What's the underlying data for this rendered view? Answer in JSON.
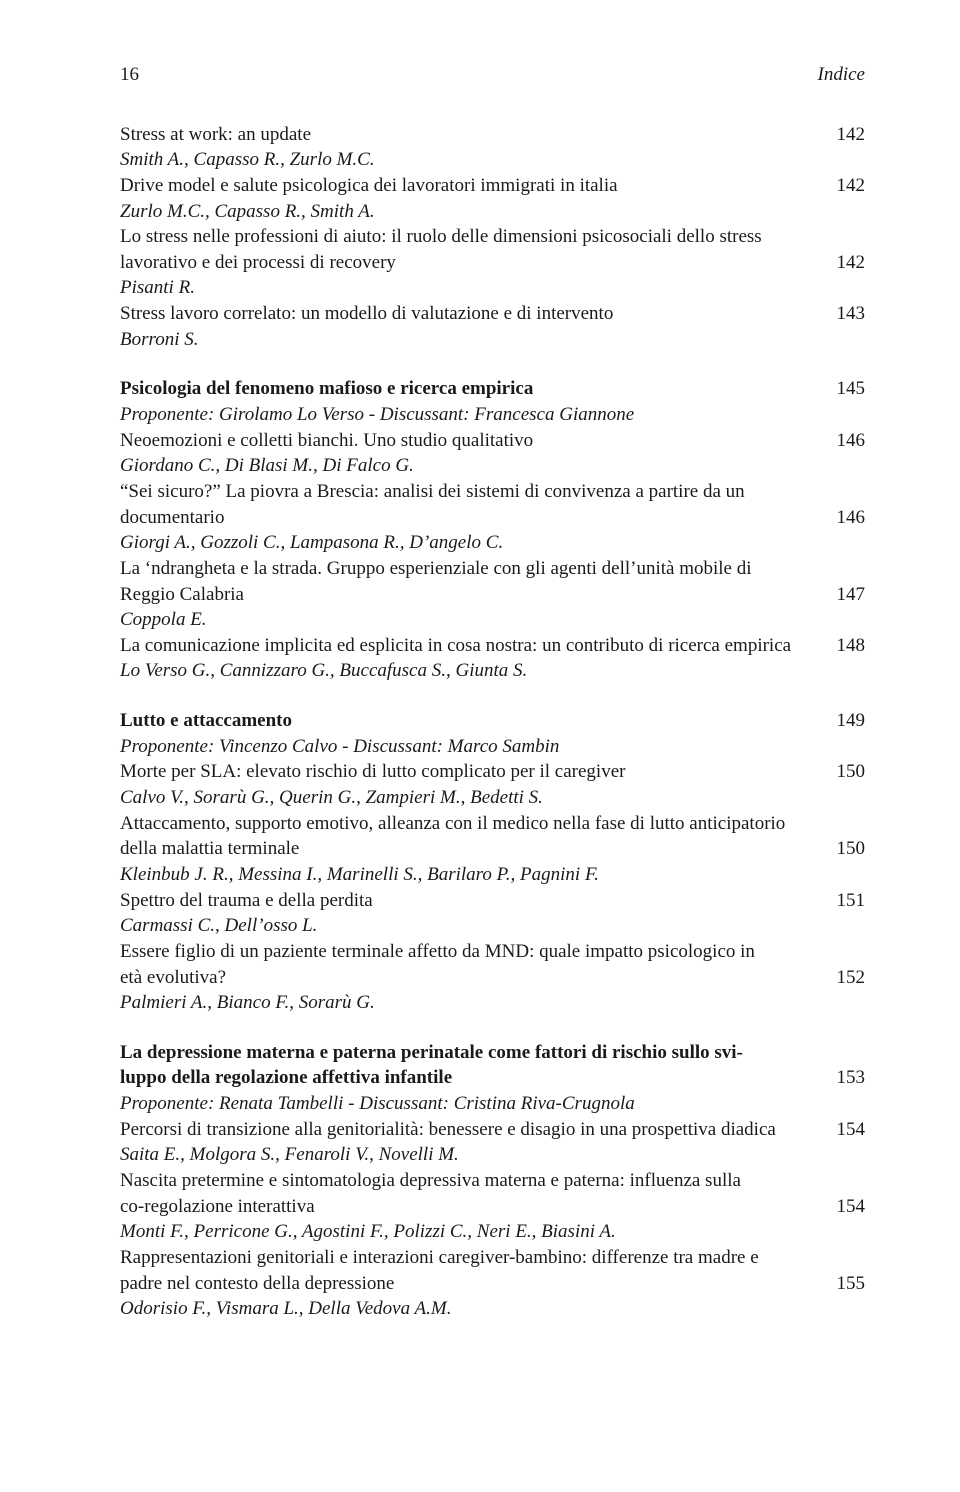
{
  "header": {
    "page_num": "16",
    "running_title": "Indice"
  },
  "entries": [
    {
      "type": "entry",
      "title": "Stress at work: an update",
      "page": "142"
    },
    {
      "type": "authors",
      "text": "Smith A., Capasso R., Zurlo M.C."
    },
    {
      "type": "entry",
      "title": "Drive model e salute psicologica dei lavoratori immigrati in italia",
      "page": "142"
    },
    {
      "type": "authors",
      "text": "Zurlo M.C., Capasso R., Smith A."
    },
    {
      "type": "plain",
      "text": "Lo stress nelle professioni di aiuto: il ruolo delle dimensioni psicosociali dello stress"
    },
    {
      "type": "entry",
      "title": "lavorativo e dei processi di recovery",
      "page": "142"
    },
    {
      "type": "authors",
      "text": "Pisanti R."
    },
    {
      "type": "entry",
      "title": "Stress lavoro correlato: un modello di valutazione e di intervento",
      "page": "143"
    },
    {
      "type": "authors",
      "text": "Borroni S."
    },
    {
      "type": "gap"
    },
    {
      "type": "section",
      "title": "Psicologia del fenomeno mafioso e ricerca empirica",
      "page": "145"
    },
    {
      "type": "proponent",
      "text": "Proponente: Girolamo Lo Verso - Discussant: Francesca Giannone"
    },
    {
      "type": "entry",
      "title": "Neoemozioni e colletti bianchi. Uno studio qualitativo",
      "page": "146"
    },
    {
      "type": "authors",
      "text": "Giordano C., Di Blasi M., Di Falco G."
    },
    {
      "type": "plain",
      "text": "“Sei sicuro?” La piovra a Brescia: analisi dei sistemi di convivenza a partire da un"
    },
    {
      "type": "entry",
      "title": "documentario",
      "page": "146"
    },
    {
      "type": "authors",
      "text": "Giorgi A., Gozzoli C., Lampasona R., D’angelo C."
    },
    {
      "type": "plain",
      "text": "La ‘ndrangheta e la strada. Gruppo esperienziale con gli agenti dell’unità mobile di"
    },
    {
      "type": "entry",
      "title": "Reggio Calabria",
      "page": "147"
    },
    {
      "type": "authors",
      "text": "Coppola E."
    },
    {
      "type": "entry",
      "title": "La comunicazione implicita ed esplicita in cosa nostra: un contributo di ricerca empirica",
      "page": "148"
    },
    {
      "type": "authors",
      "text": "Lo Verso G., Cannizzaro G., Buccafusca S., Giunta S."
    },
    {
      "type": "gap"
    },
    {
      "type": "section",
      "title": "Lutto e attaccamento",
      "page": "149"
    },
    {
      "type": "proponent",
      "text": "Proponente: Vincenzo Calvo - Discussant: Marco Sambin"
    },
    {
      "type": "entry",
      "title": "Morte per SLA: elevato rischio di lutto complicato per il caregiver",
      "page": "150"
    },
    {
      "type": "authors",
      "text": "Calvo V., Sorarù G., Querin G., Zampieri M., Bedetti S."
    },
    {
      "type": "plain",
      "text": "Attaccamento, supporto emotivo, alleanza con il medico nella fase di lutto anticipatorio"
    },
    {
      "type": "entry",
      "title": "della malattia terminale",
      "page": "150"
    },
    {
      "type": "authors",
      "text": "Kleinbub J. R., Messina I., Marinelli S., Barilaro P., Pagnini F."
    },
    {
      "type": "entry",
      "title": "Spettro del trauma e della perdita",
      "page": "151"
    },
    {
      "type": "authors",
      "text": "Carmassi C., Dell’osso L."
    },
    {
      "type": "plain",
      "text": "Essere figlio di un paziente terminale affetto da MND: quale impatto psicologico in"
    },
    {
      "type": "entry",
      "title": "età evolutiva?",
      "page": "152"
    },
    {
      "type": "authors",
      "text": "Palmieri A., Bianco F., Sorarù G."
    },
    {
      "type": "gap"
    },
    {
      "type": "section-multiline-start",
      "text": "La depressione materna e paterna perinatale come fattori di rischio sullo svi-"
    },
    {
      "type": "section",
      "title": "luppo della regolazione affettiva infantile",
      "page": "153"
    },
    {
      "type": "proponent",
      "text": "Proponente: Renata Tambelli - Discussant: Cristina Riva-Crugnola"
    },
    {
      "type": "entry",
      "title": "Percorsi di transizione alla genitorialità: benessere e disagio in una prospettiva diadica",
      "page": "154"
    },
    {
      "type": "authors",
      "text": "Saita E., Molgora S., Fenaroli V., Novelli M."
    },
    {
      "type": "plain",
      "text": "Nascita pretermine e sintomatologia depressiva materna e paterna: influenza sulla"
    },
    {
      "type": "entry",
      "title": "co-regolazione interattiva",
      "page": "154"
    },
    {
      "type": "authors",
      "text": "Monti F., Perricone G., Agostini F., Polizzi C., Neri E., Biasini A."
    },
    {
      "type": "plain",
      "text": "Rappresentazioni genitoriali e interazioni caregiver-bambino: differenze tra madre e"
    },
    {
      "type": "entry",
      "title": "padre nel contesto della depressione",
      "page": "155"
    },
    {
      "type": "authors",
      "text": "Odorisio F., Vismara L., Della Vedova A.M."
    }
  ]
}
